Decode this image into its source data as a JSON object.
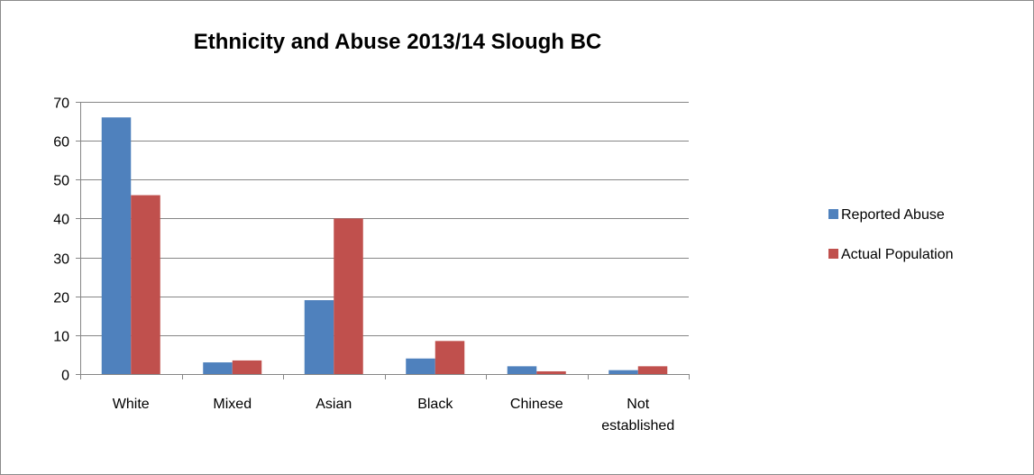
{
  "chart_data": {
    "type": "bar",
    "title": "Ethnicity and Abuse 2013/14 Slough BC",
    "xlabel": "",
    "ylabel": "",
    "categories": [
      [
        "White"
      ],
      [
        "Mixed"
      ],
      [
        "Asian"
      ],
      [
        "Black"
      ],
      [
        "Chinese"
      ],
      [
        "Not",
        "established"
      ]
    ],
    "series": [
      {
        "name": "Reported Abuse",
        "color": "#4f81bd",
        "values": [
          66,
          3,
          19,
          4,
          2,
          1
        ]
      },
      {
        "name": "Actual Population",
        "color": "#c0504d",
        "values": [
          46,
          3.5,
          40,
          8.5,
          0.7,
          2
        ]
      }
    ],
    "ylim": [
      0,
      70
    ],
    "yticks": [
      0,
      10,
      20,
      30,
      40,
      50,
      60,
      70
    ],
    "grid": true,
    "legend_position": "right"
  }
}
